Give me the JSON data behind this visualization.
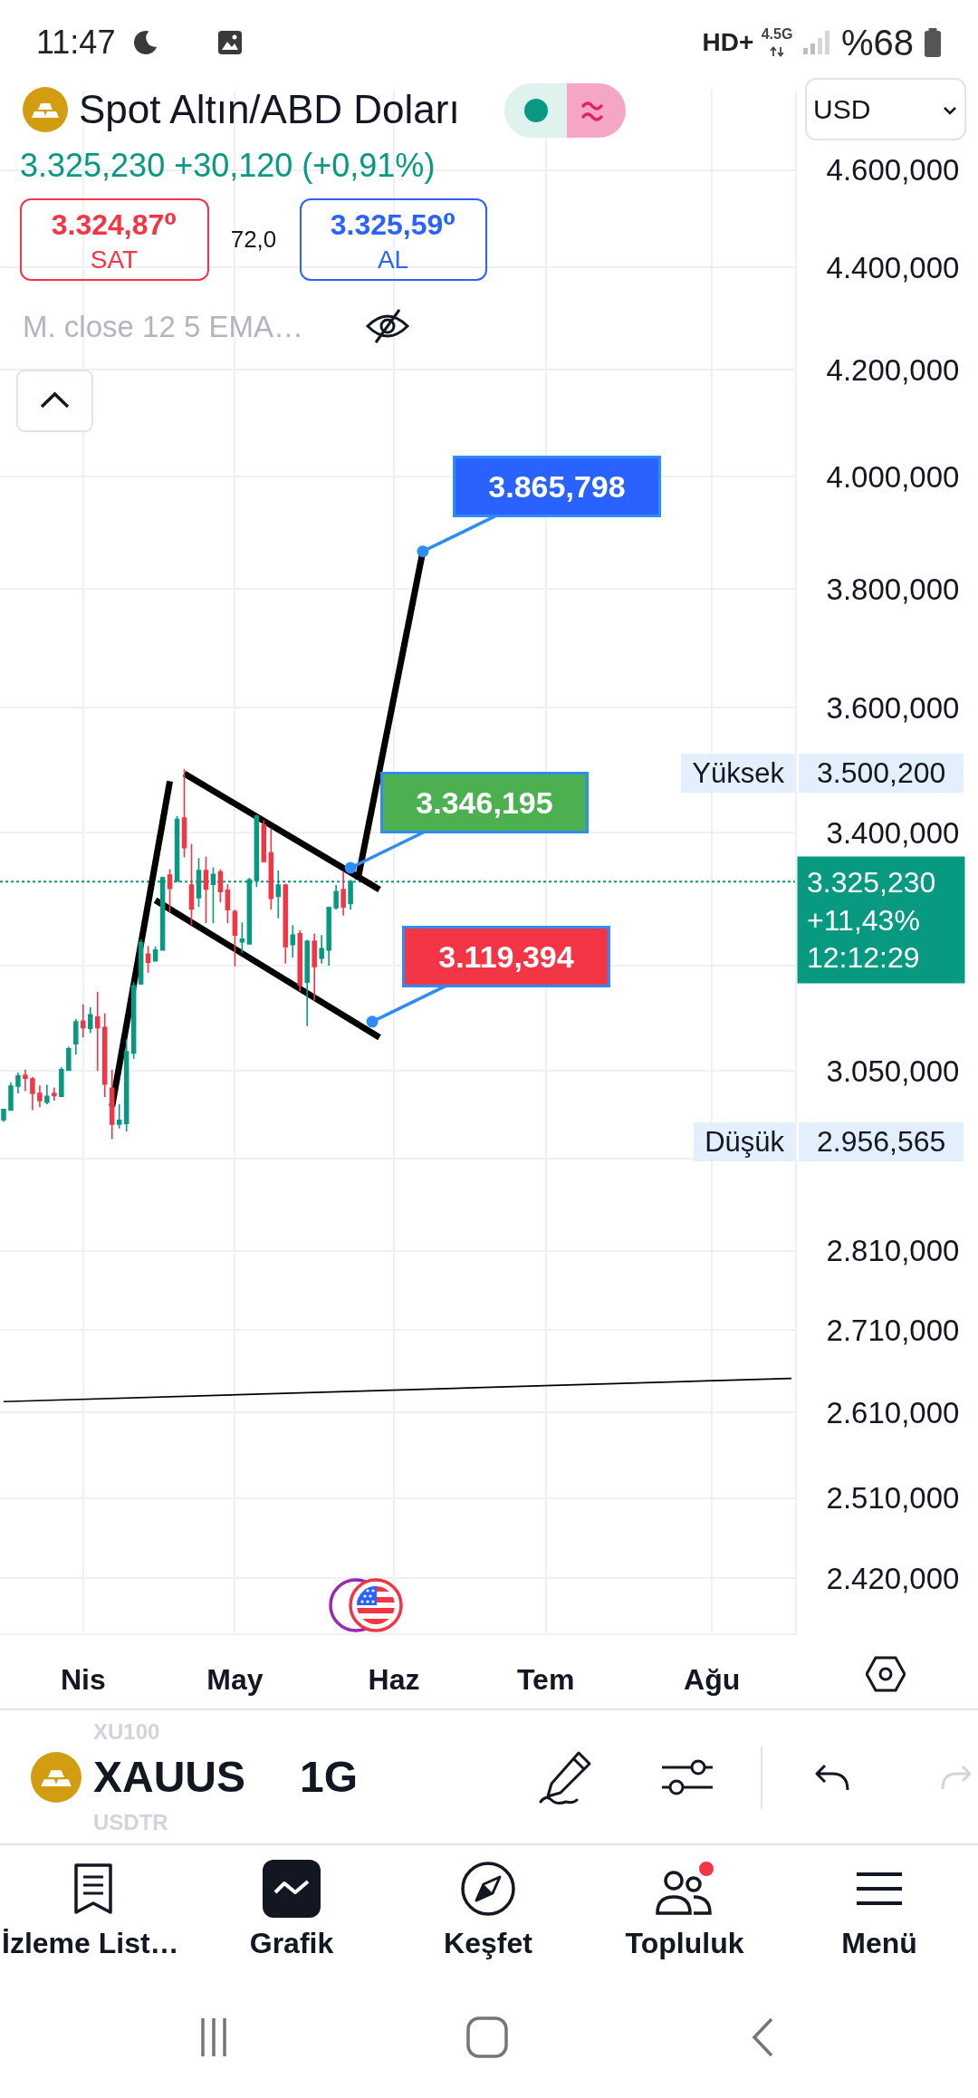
{
  "chart_data": {
    "type": "candlestick",
    "title": "Spot Altın/ABD Doları",
    "subtitle": "3.325,230 +30,120 (+0,91%)",
    "categories": [
      null,
      null,
      null,
      null,
      null,
      null,
      null,
      null,
      null,
      null,
      null,
      "Nis",
      null,
      null,
      null,
      null,
      null,
      null,
      null,
      null,
      null,
      null,
      null,
      null,
      null,
      null,
      null,
      null,
      null,
      null,
      null,
      null,
      "May",
      null,
      null,
      null,
      null,
      null,
      null,
      null,
      null,
      null,
      null,
      null,
      null,
      null,
      null,
      null,
      null,
      null,
      null,
      null,
      null,
      null,
      "Haz",
      null,
      null,
      null,
      null,
      null,
      null,
      null,
      null,
      null,
      null,
      null,
      null,
      null,
      null,
      null,
      null,
      null,
      null,
      null,
      null,
      "Tem",
      null,
      null,
      null,
      null,
      null,
      null,
      null,
      null,
      null,
      null,
      null,
      null,
      null,
      null,
      null,
      null,
      null,
      null,
      null,
      null,
      null,
      null,
      "Ağu",
      null,
      null,
      null,
      null,
      null,
      null,
      null,
      null,
      null,
      null,
      null
    ],
    "ohlc": [
      [
        2983,
        2998,
        2980,
        2997
      ],
      [
        2996,
        3034,
        2995,
        3029
      ],
      [
        3029,
        3048,
        3019,
        3043
      ],
      [
        3044,
        3052,
        3022,
        3040
      ],
      [
        3039,
        3042,
        2996,
        3019
      ],
      [
        3019,
        3030,
        3000,
        3009
      ],
      [
        3007,
        3031,
        3004,
        3015
      ],
      [
        3019,
        3027,
        3009,
        3016
      ],
      [
        3015,
        3055,
        3014,
        3052
      ],
      [
        3051,
        3084,
        3050,
        3081
      ],
      [
        3088,
        3123,
        3073,
        3119
      ],
      [
        3120,
        3144,
        3097,
        3111
      ],
      [
        3110,
        3140,
        3103,
        3129
      ],
      [
        3126,
        3162,
        3050,
        3111
      ],
      [
        3111,
        3131,
        3014,
        3032
      ],
      [
        3026,
        3052,
        2956.565,
        2977
      ],
      [
        2977,
        3004,
        2971,
        2982
      ],
      [
        2978,
        3094,
        2967,
        3077
      ],
      [
        3075,
        3176,
        3067,
        3171
      ],
      [
        3174,
        3239,
        3172,
        3234
      ],
      [
        3217,
        3229,
        3190,
        3205
      ],
      [
        3207,
        3228,
        3206,
        3223
      ],
      [
        3223,
        3333,
        3222,
        3331
      ],
      [
        3335,
        3344,
        3278,
        3315
      ],
      [
        3326,
        3426,
        3325,
        3421
      ],
      [
        3423,
        3500.2,
        3362,
        3377
      ],
      [
        3320,
        3383,
        3260,
        3284
      ],
      [
        3301,
        3361,
        3287,
        3342
      ],
      [
        3342,
        3363,
        3263,
        3314
      ],
      [
        3321,
        3347,
        3263,
        3336
      ],
      [
        3340,
        3344,
        3294,
        3310
      ],
      [
        3312,
        3321,
        3263,
        3283
      ],
      [
        3280,
        3283,
        3199,
        3245
      ],
      [
        3235,
        3264,
        3219,
        3239
      ],
      [
        3232,
        3331,
        3231,
        3328
      ],
      [
        3327,
        3428,
        3317,
        3426
      ],
      [
        3412,
        3420,
        3354,
        3356
      ],
      [
        3369,
        3407,
        3283,
        3300
      ],
      [
        3303,
        3342,
        3270,
        3320
      ],
      [
        3320,
        3322,
        3203,
        3228
      ],
      [
        3231,
        3260,
        3212,
        3245
      ],
      [
        3247,
        3252,
        3163,
        3172
      ],
      [
        3176,
        3238,
        3113,
        3236
      ],
      [
        3236,
        3247,
        3150,
        3199
      ],
      [
        3211,
        3245,
        3203,
        3225
      ],
      [
        3223,
        3287,
        3200,
        3286
      ],
      [
        3286,
        3320,
        3283,
        3310
      ],
      [
        3313,
        3340,
        3274,
        3287
      ],
      [
        3292,
        3328,
        3283,
        3325
      ],
      null,
      null,
      null,
      null,
      null,
      null,
      null,
      null,
      null,
      null,
      null,
      null,
      null,
      null,
      null,
      null,
      null,
      null,
      null,
      null,
      null,
      null,
      null,
      null,
      null,
      null,
      null,
      null,
      null,
      null,
      null,
      null,
      null,
      null,
      null,
      null,
      null,
      null,
      null,
      null,
      null,
      null,
      null,
      null,
      null,
      null,
      null,
      null,
      null,
      null,
      null,
      null,
      null,
      null,
      null,
      null,
      null,
      null,
      null,
      null,
      null
    ],
    "colors": [
      "#089981",
      "#089981",
      "#089981",
      "#f23645",
      "#f23645",
      "#f23645",
      "#089981",
      "#f23645",
      "#089981",
      "#089981",
      "#089981",
      "#f23645",
      "#089981",
      "#f23645",
      "#f23645",
      "#f23645",
      "#089981",
      "#089981",
      "#089981",
      "#089981",
      "#f23645",
      "#089981",
      "#089981",
      "#f23645",
      "#089981",
      "#f23645",
      "#f23645",
      "#089981",
      "#f23645",
      "#089981",
      "#f23645",
      "#f23645",
      "#f23645",
      "#089981",
      "#089981",
      "#089981",
      "#f23645",
      "#f23645",
      "#089981",
      "#f23645",
      "#089981",
      "#f23645",
      "#089981",
      "#f23645",
      "#089981",
      "#089981",
      "#089981",
      "#f23645",
      "#089981",
      null,
      null,
      null,
      null,
      null,
      null,
      null,
      null,
      null,
      null,
      null,
      null,
      null,
      null,
      null,
      null,
      null,
      null,
      null,
      null,
      null,
      null,
      null,
      null,
      null,
      null,
      null,
      null,
      null,
      null,
      null,
      null,
      null,
      null,
      null,
      null,
      null,
      null,
      null,
      null,
      null,
      null,
      null,
      null,
      null,
      null,
      null,
      null,
      null,
      null,
      null,
      null,
      null,
      null,
      null,
      null,
      null,
      null,
      null,
      null,
      null
    ],
    "series": [
      {
        "type": "line",
        "color": "#000000",
        "values": [
          null,
          null,
          null,
          null,
          null,
          null,
          null,
          null,
          null,
          null,
          null,
          null,
          null,
          null,
          null,
          3001,
          null,
          null,
          null,
          null,
          null,
          null,
          null,
          3481,
          null,
          null,
          null,
          null,
          null,
          null,
          null,
          null,
          null,
          null,
          null,
          null,
          null,
          null,
          null,
          null,
          null,
          null,
          null,
          null,
          null,
          null,
          null,
          null,
          null,
          null,
          null,
          null,
          null,
          null,
          null,
          null,
          null,
          null,
          null,
          null,
          null,
          null,
          null,
          null,
          null,
          null,
          null,
          null,
          null,
          null,
          null,
          null,
          null,
          null,
          null,
          null,
          null,
          null,
          null,
          null,
          null,
          null,
          null,
          null,
          null,
          null,
          null,
          null,
          null,
          null,
          null,
          null,
          null,
          null,
          null,
          null,
          null,
          null,
          null,
          null,
          null,
          null,
          null,
          null,
          null,
          null,
          null,
          null,
          null,
          null
        ]
      },
      {
        "type": "line",
        "color": "#000000",
        "values": [
          null,
          null,
          null,
          null,
          null,
          null,
          null,
          null,
          null,
          null,
          null,
          null,
          null,
          null,
          null,
          null,
          null,
          null,
          null,
          null,
          null,
          null,
          null,
          null,
          null,
          3493,
          null,
          null,
          null,
          null,
          null,
          null,
          null,
          null,
          null,
          null,
          null,
          null,
          null,
          null,
          null,
          null,
          null,
          null,
          null,
          null,
          null,
          null,
          null,
          null,
          null,
          null,
          3313,
          null,
          null,
          null,
          null,
          null,
          null,
          null,
          null,
          null,
          null,
          null,
          null,
          null,
          null,
          null,
          null,
          null,
          null,
          null,
          null,
          null,
          null,
          null,
          null,
          null,
          null,
          null,
          null,
          null,
          null,
          null,
          null,
          null,
          null,
          null,
          null,
          null,
          null,
          null,
          null,
          null,
          null,
          null,
          null,
          null,
          null,
          null,
          null,
          null,
          null,
          null,
          null,
          null,
          null,
          null,
          null,
          null
        ]
      },
      {
        "type": "line",
        "color": "#000000",
        "values": [
          null,
          null,
          null,
          null,
          null,
          null,
          null,
          null,
          null,
          null,
          null,
          null,
          null,
          null,
          null,
          null,
          null,
          null,
          null,
          null,
          null,
          3297,
          null,
          null,
          null,
          null,
          null,
          null,
          null,
          null,
          null,
          null,
          null,
          null,
          null,
          null,
          null,
          null,
          null,
          null,
          null,
          null,
          null,
          null,
          null,
          null,
          null,
          null,
          null,
          null,
          null,
          null,
          3097,
          null,
          null,
          null,
          null,
          null,
          null,
          null,
          null,
          null,
          null,
          null,
          null,
          null,
          null,
          null,
          null,
          null,
          null,
          null,
          null,
          null,
          null,
          null,
          null,
          null,
          null,
          null,
          null,
          null,
          null,
          null,
          null,
          null,
          null,
          null,
          null,
          null,
          null,
          null,
          null,
          null,
          null,
          null,
          null,
          null,
          null,
          null,
          null,
          null,
          null,
          null,
          null,
          null,
          null,
          null,
          null,
          null
        ]
      },
      {
        "type": "line",
        "color": "#000000",
        "values": [
          null,
          null,
          null,
          null,
          null,
          null,
          null,
          null,
          null,
          null,
          null,
          null,
          null,
          null,
          null,
          null,
          null,
          null,
          null,
          null,
          null,
          null,
          null,
          null,
          null,
          null,
          null,
          null,
          null,
          null,
          null,
          null,
          null,
          null,
          null,
          null,
          null,
          null,
          null,
          null,
          null,
          null,
          null,
          null,
          null,
          null,
          null,
          null,
          null,
          3328,
          null,
          null,
          null,
          null,
          null,
          null,
          null,
          null,
          3866,
          null,
          null,
          null,
          null,
          null,
          null,
          null,
          null,
          null,
          null,
          null,
          null,
          null,
          null,
          null,
          null,
          null,
          null,
          null,
          null,
          null,
          null,
          null,
          null,
          null,
          null,
          null,
          null,
          null,
          null,
          null,
          null,
          null,
          null,
          null,
          null,
          null,
          null,
          null,
          null,
          null,
          null,
          null,
          null,
          null,
          null,
          null,
          null,
          null,
          null,
          null
        ]
      },
      {
        "type": "line",
        "color": "#000000",
        "values": [
          2623,
          null,
          null,
          null,
          null,
          null,
          null,
          null,
          null,
          null,
          null,
          null,
          null,
          null,
          null,
          null,
          null,
          null,
          null,
          null,
          null,
          null,
          null,
          null,
          null,
          null,
          null,
          null,
          null,
          null,
          null,
          null,
          null,
          null,
          null,
          null,
          null,
          null,
          null,
          null,
          null,
          null,
          null,
          null,
          null,
          null,
          null,
          null,
          null,
          null,
          null,
          null,
          null,
          null,
          null,
          null,
          null,
          null,
          null,
          null,
          null,
          null,
          null,
          null,
          null,
          null,
          null,
          null,
          null,
          null,
          null,
          null,
          null,
          null,
          null,
          null,
          null,
          null,
          null,
          null,
          null,
          null,
          null,
          null,
          null,
          null,
          null,
          null,
          null,
          null,
          null,
          null,
          null,
          null,
          null,
          null,
          null,
          null,
          null,
          null,
          null,
          null,
          null,
          null,
          null,
          null,
          null,
          null,
          null,
          2651
        ]
      },
      {
        "type": "scatter",
        "color": "#2f8bf5",
        "marker": "circle",
        "values": [
          null,
          null,
          null,
          null,
          null,
          null,
          null,
          null,
          null,
          null,
          null,
          null,
          null,
          null,
          null,
          null,
          null,
          null,
          null,
          null,
          null,
          null,
          null,
          null,
          null,
          null,
          null,
          null,
          null,
          null,
          null,
          null,
          null,
          null,
          null,
          null,
          null,
          null,
          null,
          null,
          null,
          null,
          null,
          null,
          null,
          null,
          null,
          null,
          3346.195,
          null,
          null,
          3119.394,
          null,
          null,
          null,
          null,
          null,
          null,
          3865.798,
          null,
          null,
          null,
          null,
          null,
          null,
          null,
          null,
          null,
          null,
          null,
          null,
          null,
          null,
          null,
          null,
          null,
          null,
          null,
          null,
          null,
          null,
          null,
          null,
          null,
          null,
          null,
          null,
          null,
          null,
          null,
          null,
          null,
          null,
          null,
          null,
          null,
          null,
          null,
          null,
          null,
          null,
          null,
          null,
          null,
          null,
          null,
          null,
          null,
          null,
          null
        ],
        "value_labels": [
          null,
          null,
          null,
          null,
          null,
          null,
          null,
          null,
          null,
          null,
          null,
          null,
          null,
          null,
          null,
          null,
          null,
          null,
          null,
          null,
          null,
          null,
          null,
          null,
          null,
          null,
          null,
          null,
          null,
          null,
          null,
          null,
          null,
          null,
          null,
          null,
          null,
          null,
          null,
          null,
          null,
          null,
          null,
          null,
          null,
          null,
          null,
          null,
          "3.346,195",
          null,
          null,
          "3.119,394",
          null,
          null,
          null,
          null,
          null,
          null,
          "3.865,798",
          null,
          null,
          null,
          null,
          null,
          null,
          null,
          null,
          null,
          null,
          null,
          null,
          null,
          null,
          null,
          null,
          null,
          null,
          null,
          null,
          null,
          null,
          null,
          null,
          null,
          null,
          null,
          null,
          null,
          null,
          null,
          null,
          null,
          null,
          null,
          null,
          null,
          null,
          null,
          null,
          null,
          null,
          null,
          null,
          null,
          null,
          null,
          null,
          null,
          null,
          null
        ]
      }
    ],
    "ref_lines": [
      {
        "axis": "y",
        "value": 3325.23,
        "label": "3.325,230\n+11,43%\n12:12:29",
        "color": "#089981",
        "line_style": "dotted"
      }
    ],
    "ylim": [
      2360,
      4770
    ],
    "yticks": [
      {
        "value": 2420,
        "label": "2.420,000"
      },
      {
        "value": 2510,
        "label": "2.510,000"
      },
      {
        "value": 2610,
        "label": "2.610,000"
      },
      {
        "value": 2710,
        "label": "2.710,000"
      },
      {
        "value": 2810,
        "label": "2.810,000"
      },
      {
        "value": 2930,
        "label": null
      },
      {
        "value": 3050,
        "label": "3.050,000"
      },
      {
        "value": 3200,
        "label": null
      },
      {
        "value": 3400,
        "label": "3.400,000"
      },
      {
        "value": 3600,
        "label": "3.600,000"
      },
      {
        "value": 3800,
        "label": "3.800,000"
      },
      {
        "value": 4000,
        "label": "4.000,000"
      },
      {
        "value": 4200,
        "label": "4.200,000"
      },
      {
        "value": 4400,
        "label": "4.400,000"
      },
      {
        "value": 4600,
        "label": "4.600,000"
      }
    ],
    "log": true,
    "grid": true,
    "annotations": [
      "11:47",
      "HD+",
      "4.5G",
      "%68",
      "3.324,87⁰",
      "SAT",
      "72,0",
      "3.325,59⁰",
      "AL",
      "USD",
      "M. close 12 5 EMA…",
      "XU100",
      "XAUUS",
      "USDTR",
      "1G",
      "İzleme List…",
      "Grafik",
      "Keşfet",
      "Topluluk",
      "Menü",
      "Yüksek",
      "3.500,200",
      "Düşük",
      "2.956,565"
    ]
  }
}
